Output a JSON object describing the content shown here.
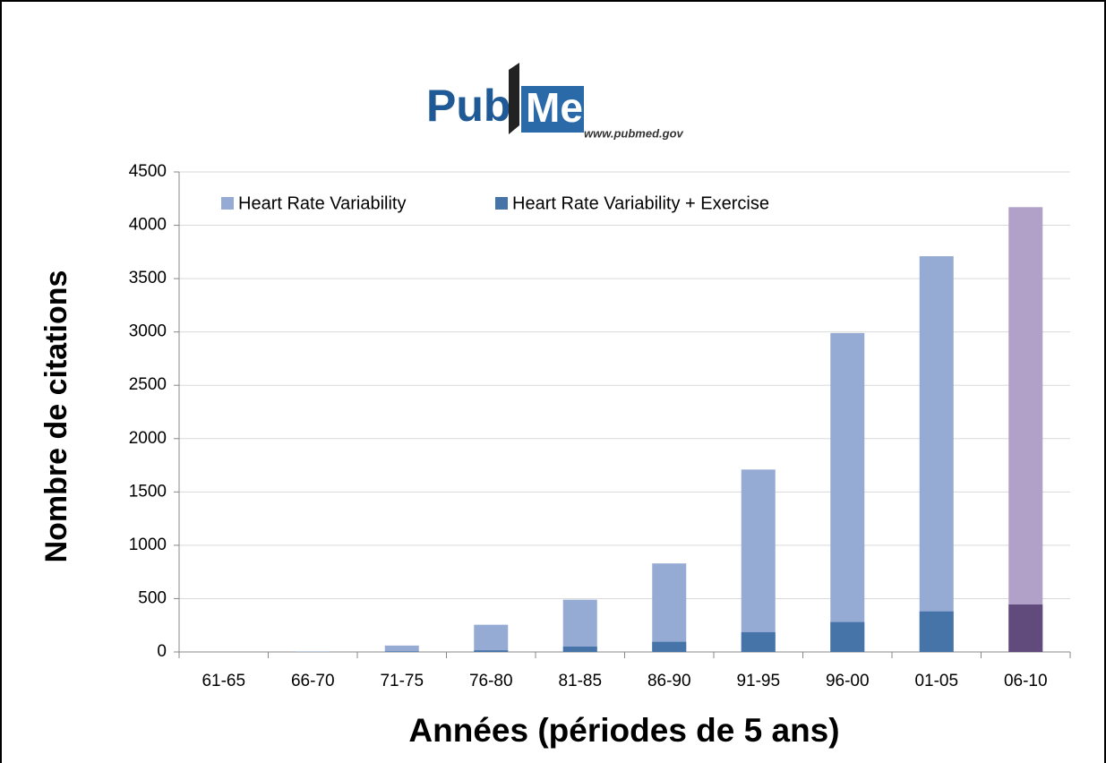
{
  "chart_data": {
    "type": "bar",
    "barmode": "overlay",
    "logo": {
      "left": "Pub",
      "right": "Med",
      "url": "www.pubmed.gov"
    },
    "x_label": "Années (périodes de 5 ans)",
    "y_label": "Nombre de citations",
    "categories": [
      "61-65",
      "66-70",
      "71-75",
      "76-80",
      "81-85",
      "86-90",
      "91-95",
      "96-00",
      "01-05",
      "06-10"
    ],
    "series": [
      {
        "name": "Heart Rate Variability",
        "color": "#95abd3",
        "colors": [
          "#95abd3",
          "#95abd3",
          "#95abd3",
          "#95abd3",
          "#95abd3",
          "#95abd3",
          "#95abd3",
          "#95abd3",
          "#95abd3",
          "#b1a1c9"
        ],
        "values": [
          0,
          5,
          60,
          255,
          490,
          830,
          1710,
          2990,
          3710,
          4170
        ]
      },
      {
        "name": "Heart Rate Variability + Exercise",
        "color": "#4673a8",
        "colors": [
          "#4673a8",
          "#4673a8",
          "#4673a8",
          "#4673a8",
          "#4673a8",
          "#4673a8",
          "#4673a8",
          "#4673a8",
          "#4673a8",
          "#614a7c"
        ],
        "values": [
          0,
          0,
          5,
          15,
          50,
          95,
          185,
          280,
          380,
          445
        ]
      }
    ],
    "ylim": [
      0,
      4500
    ],
    "yticks": [
      0,
      500,
      1000,
      1500,
      2000,
      2500,
      3000,
      3500,
      4000,
      4500
    ],
    "grid": true,
    "legend": "top-left"
  }
}
